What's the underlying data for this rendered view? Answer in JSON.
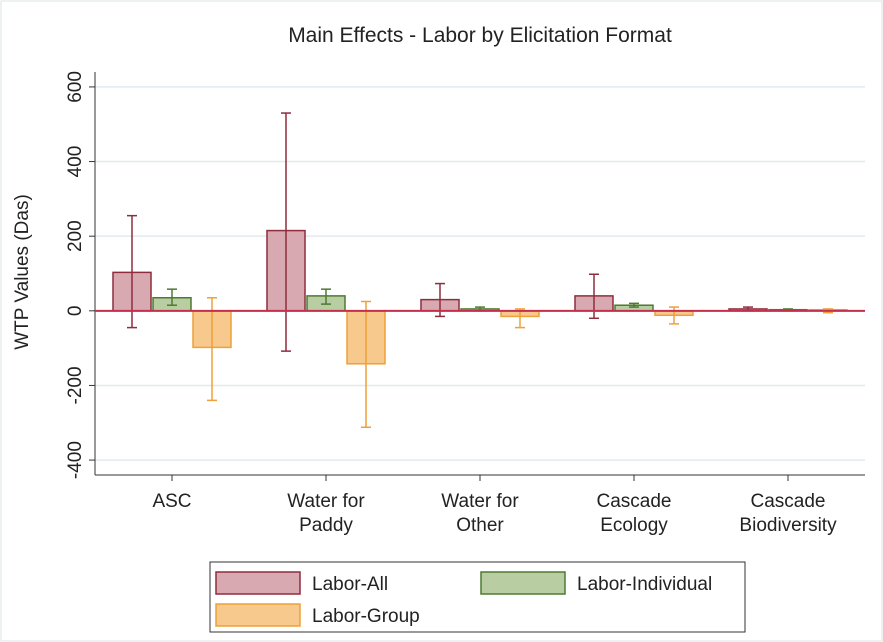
{
  "chart_data": {
    "type": "bar",
    "title": "Main Effects - Labor by Elicitation Format",
    "y_label": "WTP Values (Das)",
    "categories": [
      "ASC",
      "Water for\nPaddy",
      "Water for\nOther",
      "Cascade\nEcology",
      "Cascade\nBiodiversity"
    ],
    "series": [
      {
        "name": "Labor-All",
        "color": "#d8a9b0",
        "edge": "#8e2d3d",
        "values": [
          103,
          215,
          30,
          40,
          5
        ],
        "lower": [
          -45,
          -108,
          -15,
          -20,
          0
        ],
        "upper": [
          255,
          530,
          73,
          98,
          10
        ]
      },
      {
        "name": "Labor-Individual",
        "color": "#b9cda3",
        "edge": "#4d7a32",
        "values": [
          35,
          40,
          5,
          15,
          3
        ],
        "lower": [
          15,
          18,
          0,
          10,
          0
        ],
        "upper": [
          58,
          58,
          10,
          20,
          5
        ]
      },
      {
        "name": "Labor-Group",
        "color": "#f7c98c",
        "edge": "#eea03a",
        "values": [
          -98,
          -142,
          -15,
          -12,
          3
        ],
        "lower": [
          -240,
          -312,
          -45,
          -35,
          -5
        ],
        "upper": [
          35,
          25,
          5,
          10,
          5
        ]
      }
    ],
    "ylim": [
      -440,
      640
    ],
    "yticks": [
      -400,
      -200,
      0,
      200,
      400,
      600
    ],
    "grid": true,
    "reference_line": 0,
    "reference_color": "#c4304c",
    "legend": "bottom"
  }
}
